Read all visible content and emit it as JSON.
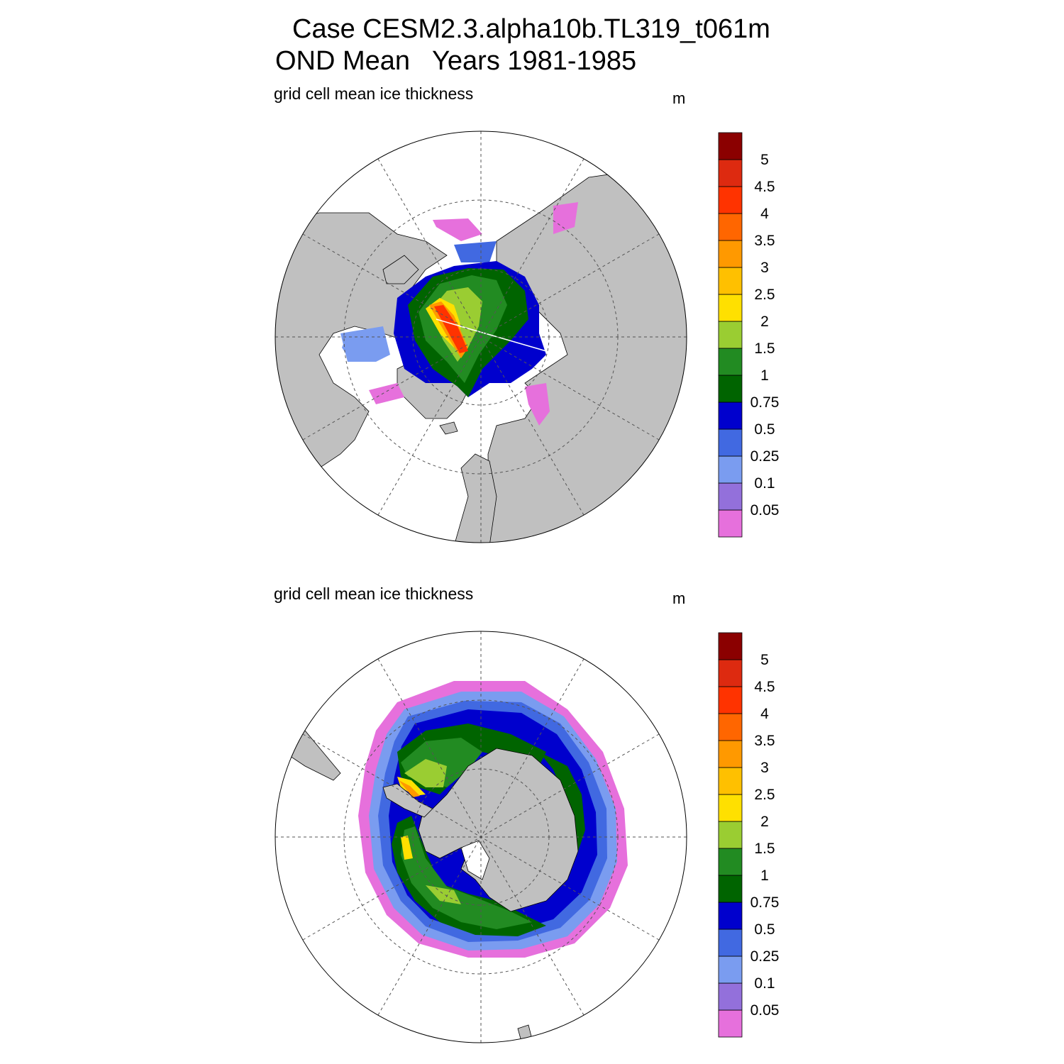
{
  "figure": {
    "title_line1": "Case CESM2.3.alpha10b.TL319_t061m",
    "title_line2": "OND Mean   Years 1981-1985"
  },
  "panels": [
    {
      "id": "arctic",
      "left_label": "grid cell mean ice thickness",
      "units": "m",
      "hemisphere": "north"
    },
    {
      "id": "antarctic",
      "left_label": "grid cell mean ice thickness",
      "units": "m",
      "hemisphere": "south"
    }
  ],
  "colorbar": {
    "levels": [
      "0.05",
      "0.1",
      "0.25",
      "0.5",
      "0.75",
      "1",
      "1.5",
      "2",
      "2.5",
      "3",
      "3.5",
      "4",
      "4.5",
      "5"
    ],
    "colors": [
      "#e670dc",
      "#9370db",
      "#7a9cf0",
      "#4169e1",
      "#0000cd",
      "#006400",
      "#228b22",
      "#9acd32",
      "#ffe000",
      "#ffc000",
      "#ff9900",
      "#ff6600",
      "#ff3300",
      "#dd2a10",
      "#8b0000"
    ]
  },
  "map_colors": {
    "land": "#c0c0c0",
    "ocean": "#ffffff"
  }
}
